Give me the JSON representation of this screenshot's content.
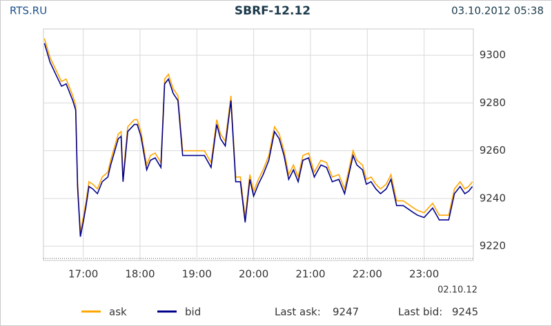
{
  "chart_data": {
    "type": "line",
    "source": "RTS.RU",
    "title": "SBRF-12.12",
    "timestamp": "03.10.2012 05:38",
    "date_label": "02.10.12",
    "x": [
      "16:19",
      "16:25",
      "16:31",
      "16:37",
      "16:42",
      "16:49",
      "16:52",
      "16:54",
      "16:57",
      "17:00",
      "17:03",
      "17:06",
      "17:10",
      "17:15",
      "17:20",
      "17:26",
      "17:29",
      "17:37",
      "17:40",
      "17:42",
      "17:47",
      "17:54",
      "17:57",
      "18:01",
      "18:07",
      "18:11",
      "18:16",
      "18:22",
      "18:26",
      "18:30",
      "18:35",
      "18:40",
      "18:45",
      "18:51",
      "19:08",
      "19:15",
      "19:21",
      "19:25",
      "19:30",
      "19:36",
      "19:41",
      "19:46",
      "19:51",
      "19:56",
      "20:00",
      "20:05",
      "20:10",
      "20:16",
      "20:22",
      "20:27",
      "20:32",
      "20:37",
      "20:42",
      "20:47",
      "20:52",
      "20:58",
      "21:04",
      "21:11",
      "21:17",
      "21:23",
      "21:30",
      "21:36",
      "21:45",
      "21:49",
      "21:55",
      "21:59",
      "22:04",
      "22:09",
      "22:14",
      "22:20",
      "22:25",
      "22:31",
      "22:38",
      "22:49",
      "22:53",
      "23:00",
      "23:09",
      "23:16",
      "23:26",
      "23:32",
      "23:38",
      "23:43",
      "23:47",
      "23:51"
    ],
    "series": [
      {
        "name": "ask",
        "color": "#ffa500",
        "values": [
          9307,
          9299,
          9294,
          9289,
          9290,
          9283,
          9279,
          9247,
          9226,
          9232,
          9239,
          9247,
          9246,
          9244,
          9249,
          9251,
          9256,
          9267,
          9268,
          9249,
          9270,
          9273,
          9273,
          9268,
          9254,
          9258,
          9259,
          9255,
          9290,
          9292,
          9286,
          9283,
          9260,
          9260,
          9260,
          9255,
          9273,
          9267,
          9264,
          9283,
          9249,
          9249,
          9232,
          9250,
          9243,
          9248,
          9252,
          9258,
          9270,
          9267,
          9260,
          9250,
          9254,
          9249,
          9258,
          9259,
          9251,
          9256,
          9255,
          9249,
          9250,
          9244,
          9260,
          9256,
          9254,
          9248,
          9249,
          9246,
          9244,
          9246,
          9250,
          9239,
          9239,
          9236,
          9235,
          9234,
          9238,
          9233,
          9233,
          9244,
          9247,
          9244,
          9245,
          9247
        ]
      },
      {
        "name": "bid",
        "color": "#00008b",
        "values": [
          9305,
          9297,
          9292,
          9287,
          9288,
          9281,
          9277,
          9245,
          9224,
          9230,
          9237,
          9245,
          9244,
          9242,
          9247,
          9249,
          9254,
          9265,
          9266,
          9247,
          9268,
          9271,
          9271,
          9266,
          9252,
          9256,
          9257,
          9253,
          9288,
          9290,
          9284,
          9281,
          9258,
          9258,
          9258,
          9253,
          9271,
          9265,
          9262,
          9281,
          9247,
          9247,
          9230,
          9248,
          9241,
          9246,
          9250,
          9256,
          9268,
          9265,
          9258,
          9248,
          9252,
          9247,
          9256,
          9257,
          9249,
          9254,
          9253,
          9247,
          9248,
          9242,
          9258,
          9254,
          9252,
          9246,
          9247,
          9244,
          9242,
          9244,
          9248,
          9237,
          9237,
          9234,
          9233,
          9232,
          9236,
          9231,
          9231,
          9242,
          9245,
          9242,
          9243,
          9245
        ]
      }
    ],
    "xlim": [
      "16:18",
      "23:52"
    ],
    "xticks": [
      "17:00",
      "18:00",
      "19:00",
      "20:00",
      "21:00",
      "22:00",
      "23:00"
    ],
    "ylim": [
      9214,
      9311
    ],
    "yticks": [
      9220,
      9240,
      9260,
      9280,
      9300
    ],
    "grid": true,
    "last_ask_label": "Last ask:",
    "last_ask": 9247,
    "last_bid_label": "Last bid:",
    "last_bid": 9245
  }
}
